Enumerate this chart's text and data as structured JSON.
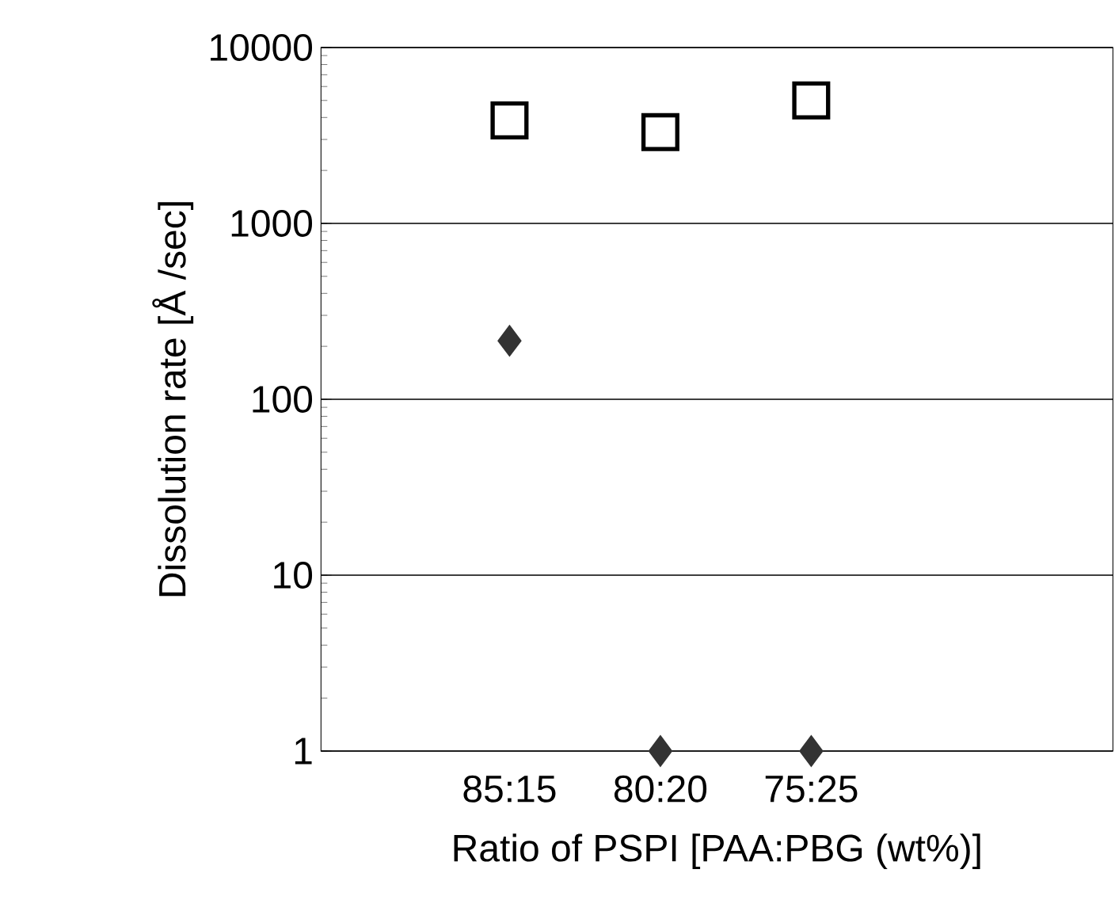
{
  "chart_data": {
    "type": "scatter",
    "xlabel": "Ratio of PSPI [PAA:PBG (wt%)]",
    "ylabel": "Dissolution rate [Å /sec]",
    "categories": [
      "85:15",
      "80:20",
      "75:25"
    ],
    "series": [
      {
        "color": "#000000",
        "marker": "square",
        "values": [
          3850,
          3300,
          5000
        ]
      },
      {
        "color": "#333333",
        "marker": "diamond",
        "values": [
          215,
          1,
          1
        ]
      }
    ],
    "log": "y",
    "ylim": [
      1,
      10000
    ],
    "yticks": [
      1,
      10,
      100,
      1000,
      10000
    ],
    "grid": "y"
  }
}
